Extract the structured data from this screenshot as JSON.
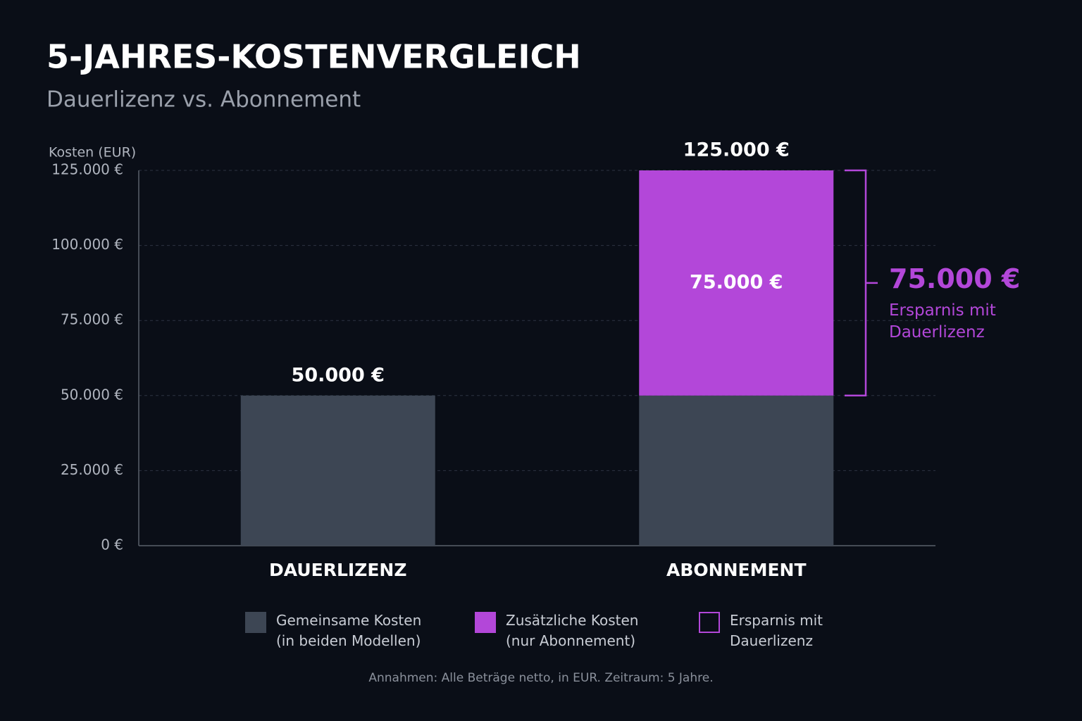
{
  "chart_data": {
    "type": "stacked_bar",
    "title": "5-JAHRES-KOSTENVERGLEICH",
    "subtitle": "Dauerlizenz vs. Abonnement",
    "y_label": "Kosten (EUR)",
    "categories": [
      "DAUERLIZENZ",
      "ABONNEMENT"
    ],
    "series": [
      {
        "name": "Gemeinsame Kosten (in beiden Modellen)",
        "color": "#3d4654",
        "values": [
          50000,
          50000
        ]
      },
      {
        "name": "Zusätzliche Kosten (nur Abonnement)",
        "color": "#b347d9",
        "values": [
          0,
          75000
        ],
        "value_labels": [
          null,
          "75.000 €"
        ]
      }
    ],
    "totals": {
      "values": [
        50000,
        125000
      ],
      "value_labels": [
        "50.000 €",
        "125.000 €"
      ]
    },
    "ylim": [
      0,
      125000
    ],
    "yticks": [
      {
        "value": 0,
        "label": "0 €"
      },
      {
        "value": 25000,
        "label": "25.000 €"
      },
      {
        "value": 50000,
        "label": "50.000 €"
      },
      {
        "value": 75000,
        "label": "75.000 €"
      },
      {
        "value": 100000,
        "label": "100.000 €"
      },
      {
        "value": 125000,
        "label": "125.000 €"
      }
    ],
    "grid": true,
    "annotation": {
      "value": 75000,
      "label": "75.000 €",
      "text": "Ersparnis mit Dauerlizenz",
      "color": "#b347d9"
    },
    "legend_extra": {
      "name": "Ersparnis mit Dauerlizenz",
      "color": "#b347d9"
    },
    "note": "Annahmen: Alle Beträge netto, in EUR. Zeitraum: 5 Jahre."
  }
}
